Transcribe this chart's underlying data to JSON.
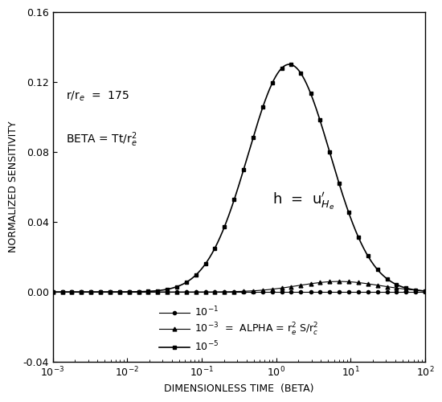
{
  "title": "",
  "xlabel": "DIMENSIONLESS TIME  (BETA)",
  "ylabel": "NORMALIZED SENSITIVITY",
  "xlim": [
    0.001,
    100.0
  ],
  "ylim": [
    -0.04,
    0.16
  ],
  "yticks": [
    -0.04,
    0.0,
    0.04,
    0.08,
    0.12,
    0.16
  ],
  "r_over_re": 175,
  "alpha1": 0.1,
  "alpha2": 0.001,
  "alpha3": 1e-05,
  "peak_value": 0.13,
  "background_color": "#ffffff"
}
